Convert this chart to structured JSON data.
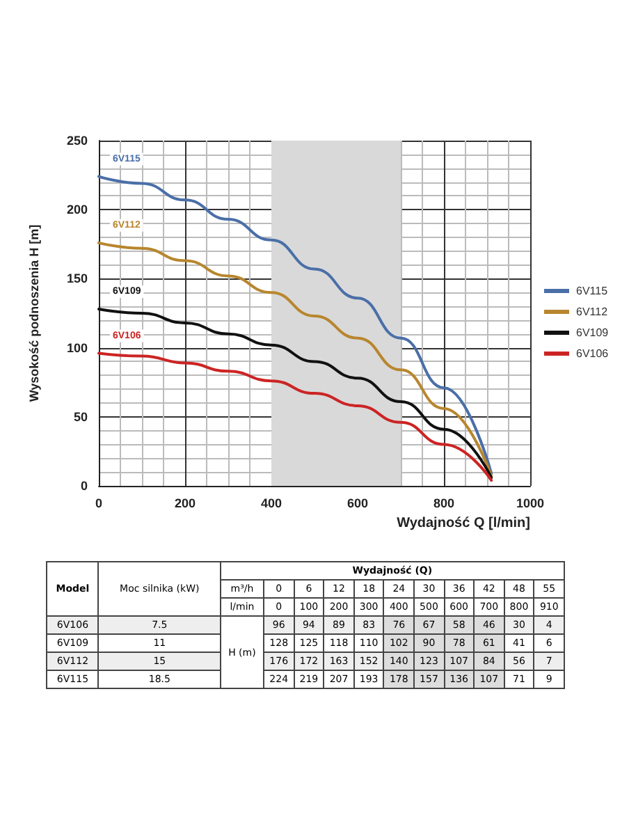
{
  "chart_data": [
    {
      "type": "line",
      "xlabel": "Wydajność Q [l/min]",
      "ylabel": "Wysokość podnoszenia H [m]",
      "x": [
        0,
        100,
        200,
        300,
        400,
        500,
        600,
        700,
        800,
        910
      ],
      "series": [
        {
          "name": "6V115",
          "color": "#4a6fa8",
          "values": [
            224,
            219,
            207,
            193,
            178,
            157,
            136,
            107,
            71,
            9
          ]
        },
        {
          "name": "6V112",
          "color": "#b8862e",
          "values": [
            176,
            172,
            163,
            152,
            140,
            123,
            107,
            84,
            56,
            7
          ]
        },
        {
          "name": "6V109",
          "color": "#111111",
          "values": [
            128,
            125,
            118,
            110,
            102,
            90,
            78,
            61,
            41,
            6
          ]
        },
        {
          "name": "6V106",
          "color": "#cc2424",
          "values": [
            96,
            94,
            89,
            83,
            76,
            67,
            58,
            46,
            30,
            4
          ]
        }
      ],
      "xlim": [
        0,
        1000
      ],
      "xticks": [
        0,
        200,
        400,
        600,
        800,
        1000
      ],
      "ylim": [
        0,
        250
      ],
      "yticks": [
        0,
        50,
        100,
        150,
        200,
        250
      ],
      "bands": [
        {
          "axis": "x",
          "from": 400,
          "to": 700,
          "color": "#d9d9d9"
        }
      ],
      "grid": true,
      "legend": "right",
      "marker": "none",
      "line_style": "solid"
    },
    {
      "type": "other",
      "annotations": [
        "Model",
        "Moc silnika (kW)",
        "Wydajność (Q)",
        "m³/h",
        "0",
        "6",
        "12",
        "18",
        "24",
        "30",
        "36",
        "42",
        "48",
        "55",
        "l/min",
        "0",
        "100",
        "200",
        "300",
        "400",
        "500",
        "600",
        "700",
        "800",
        "910",
        "H (m)",
        "6V106",
        "7.5",
        "96",
        "94",
        "89",
        "83",
        "76",
        "67",
        "58",
        "46",
        "30",
        "4",
        "6V109",
        "11",
        "128",
        "125",
        "118",
        "110",
        "102",
        "90",
        "78",
        "61",
        "41",
        "6",
        "6V112",
        "15",
        "176",
        "172",
        "163",
        "152",
        "140",
        "123",
        "107",
        "84",
        "56",
        "7",
        "6V115",
        "18.5",
        "224",
        "219",
        "207",
        "193",
        "178",
        "157",
        "136",
        "107",
        "71",
        "9"
      ]
    }
  ]
}
